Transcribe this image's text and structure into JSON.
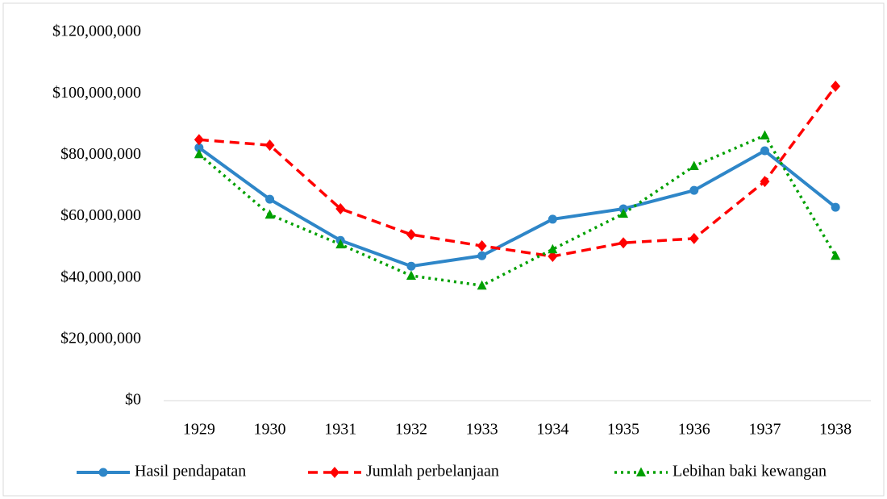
{
  "chart_data": {
    "type": "line",
    "categories": [
      "1929",
      "1930",
      "1931",
      "1932",
      "1933",
      "1934",
      "1935",
      "1936",
      "1937",
      "1938"
    ],
    "series": [
      {
        "name": "Hasil pendapatan",
        "color": "#2e86c8",
        "line_style": "solid",
        "marker": "circle",
        "values": [
          82400000,
          65600000,
          52200000,
          43800000,
          47200000,
          59100000,
          62500000,
          68500000,
          81400000,
          63000000
        ]
      },
      {
        "name": "Jumlah perbelanjaan",
        "color": "#ff0000",
        "line_style": "dashed",
        "marker": "diamond",
        "values": [
          85000000,
          83200000,
          62500000,
          54100000,
          50400000,
          47000000,
          51400000,
          52800000,
          71400000,
          102400000
        ]
      },
      {
        "name": "Lebihan baki kewangan",
        "color": "#00a000",
        "line_style": "dotted",
        "marker": "triangle",
        "values": [
          80300000,
          60600000,
          50900000,
          40700000,
          37500000,
          49300000,
          60900000,
          76400000,
          86400000,
          47200000
        ]
      }
    ],
    "ylim": [
      0,
      120000000
    ],
    "yticks": [
      {
        "value": 0,
        "label": "$0"
      },
      {
        "value": 20000000,
        "label": "$20,000,000"
      },
      {
        "value": 40000000,
        "label": "$40,000,000"
      },
      {
        "value": 60000000,
        "label": "$60,000,000"
      },
      {
        "value": 80000000,
        "label": "$80,000,000"
      },
      {
        "value": 100000000,
        "label": "$100,000,000"
      },
      {
        "value": 120000000,
        "label": "$120,000,000"
      }
    ],
    "grid": false,
    "legend": "bottom"
  }
}
